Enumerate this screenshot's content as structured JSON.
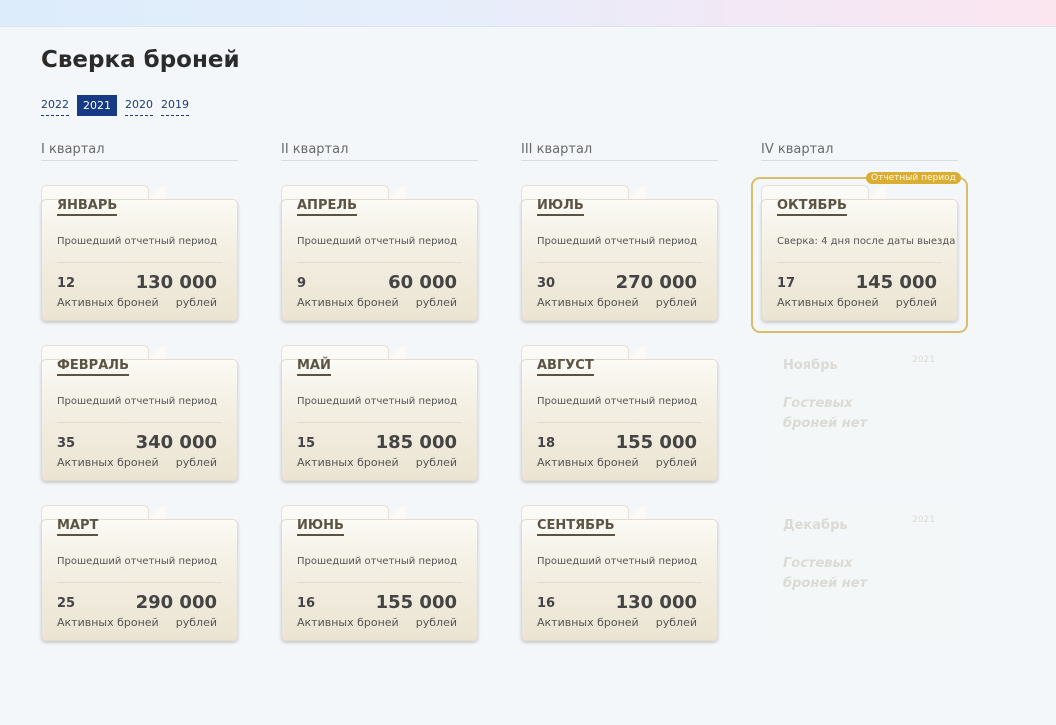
{
  "title": "Сверка броней",
  "years": [
    {
      "label": "2022",
      "active": false
    },
    {
      "label": "2021",
      "active": true
    },
    {
      "label": "2020",
      "active": false
    },
    {
      "label": "2019",
      "active": false
    }
  ],
  "colors": {
    "accent": "#173a84",
    "highlight": "#d9ae33"
  },
  "current_badge": "Отчетный период",
  "labels": {
    "count": "Активных броней",
    "sum": "рублей"
  },
  "quarters": [
    {
      "title": "I квартал",
      "months": [
        {
          "name": "ЯНВАРЬ",
          "status": "Прошедший отчетный период",
          "count": "12",
          "sum": "130 000"
        },
        {
          "name": "ФЕВРАЛЬ",
          "status": "Прошедший отчетный период",
          "count": "35",
          "sum": "340 000"
        },
        {
          "name": "МАРТ",
          "status": "Прошедший отчетный период",
          "count": "25",
          "sum": "290 000"
        }
      ]
    },
    {
      "title": "II квартал",
      "months": [
        {
          "name": "АПРЕЛЬ",
          "status": "Прошедший отчетный период",
          "count": "9",
          "sum": "60 000"
        },
        {
          "name": "МАЙ",
          "status": "Прошедший отчетный период",
          "count": "15",
          "sum": "185 000"
        },
        {
          "name": "ИЮНЬ",
          "status": "Прошедший отчетный период",
          "count": "16",
          "sum": "155 000"
        }
      ]
    },
    {
      "title": "III квартал",
      "months": [
        {
          "name": "ИЮЛЬ",
          "status": "Прошедший отчетный период",
          "count": "30",
          "sum": "270 000"
        },
        {
          "name": "АВГУСТ",
          "status": "Прошедший отчетный период",
          "count": "18",
          "sum": "155 000"
        },
        {
          "name": "СЕНТЯБРЬ",
          "status": "Прошедший отчетный период",
          "count": "16",
          "sum": "130 000"
        }
      ]
    },
    {
      "title": "IV квартал",
      "months": [
        {
          "name": "ОКТЯБРЬ",
          "status": "Сверка: 4 дня после даты выезда",
          "count": "17",
          "sum": "145 000",
          "current": true
        },
        {
          "name": "Ноябрь",
          "year": "2021",
          "empty_text": "Гостевых броней нет",
          "empty": true
        },
        {
          "name": "Декабрь",
          "year": "2021",
          "empty_text": "Гостевых броней нет",
          "empty": true
        }
      ]
    }
  ]
}
